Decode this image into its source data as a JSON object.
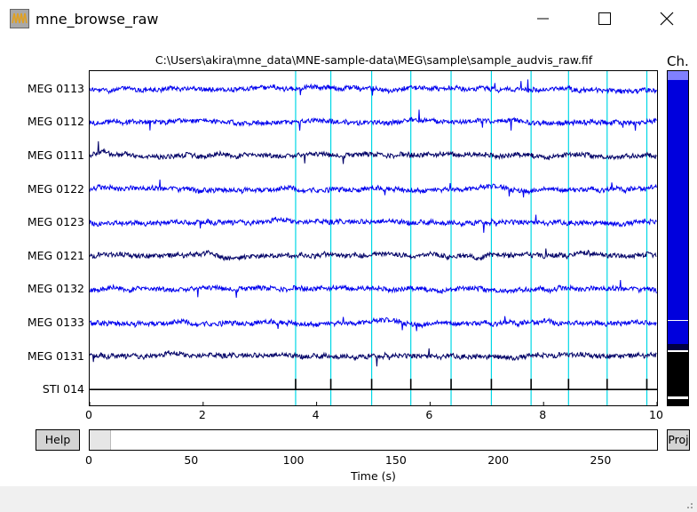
{
  "window": {
    "title": "mne_browse_raw",
    "icon": "waveform-icon",
    "controls": [
      "minimize-icon",
      "maximize-icon",
      "close-icon"
    ]
  },
  "figure": {
    "title": "C:\\Users\\akira\\mne_data\\MNE-sample-data\\MEG\\sample\\sample_audvis_raw.fif",
    "channel_scroll_label": "Ch.",
    "help_label": "Help",
    "proj_label": "Proj",
    "time_axis_label": "Time (s)",
    "colors": {
      "blue": "#0000ee",
      "navy": "#000066",
      "event": "#00d7e6",
      "stim": "#000000"
    }
  },
  "chart_data": {
    "type": "line",
    "xlim": [
      0,
      10
    ],
    "xticks": [
      "0",
      "2",
      "4",
      "6",
      "8",
      "10"
    ],
    "channels": [
      {
        "name": "MEG 0113",
        "color": "blue"
      },
      {
        "name": "MEG 0112",
        "color": "blue"
      },
      {
        "name": "MEG 0111",
        "color": "navy"
      },
      {
        "name": "MEG 0122",
        "color": "blue"
      },
      {
        "name": "MEG 0123",
        "color": "blue"
      },
      {
        "name": "MEG 0121",
        "color": "navy"
      },
      {
        "name": "MEG 0132",
        "color": "blue"
      },
      {
        "name": "MEG 0133",
        "color": "blue"
      },
      {
        "name": "MEG 0131",
        "color": "navy"
      },
      {
        "name": "STI 014",
        "color": "stim"
      }
    ],
    "event_times": [
      3.63,
      4.25,
      4.97,
      5.66,
      6.37,
      7.08,
      7.78,
      8.44,
      9.12,
      9.82
    ],
    "scroll_ticks": [
      "0",
      "50",
      "100",
      "150",
      "200",
      "250"
    ],
    "scroll_xlim": [
      0,
      278
    ],
    "scroll_window": [
      0,
      10
    ]
  }
}
